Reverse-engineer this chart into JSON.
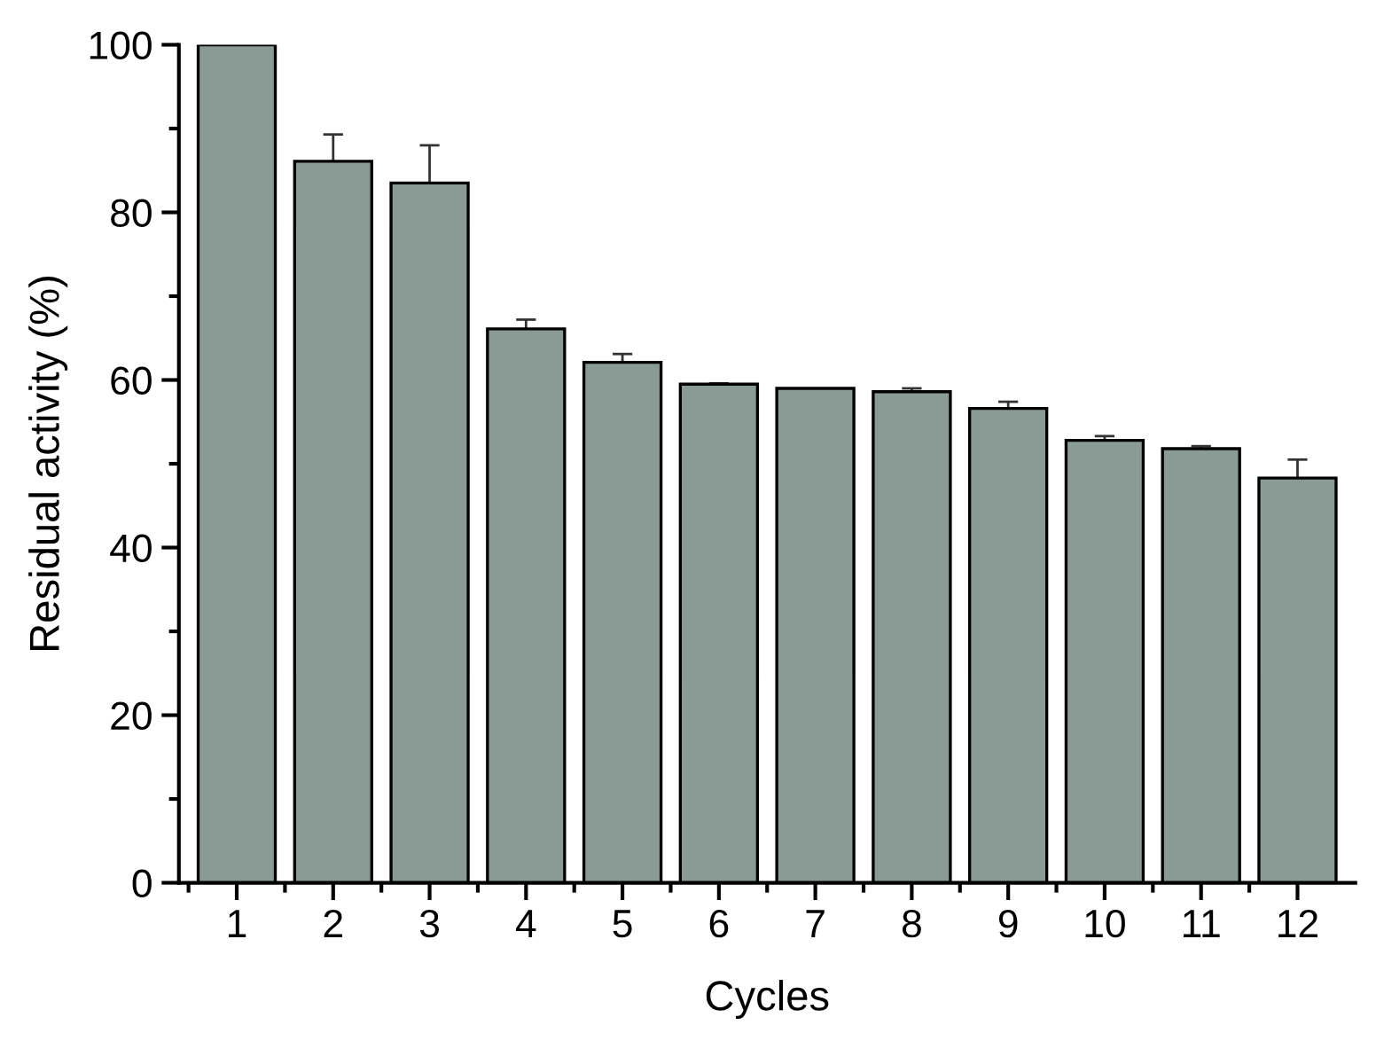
{
  "chart_data": {
    "type": "bar",
    "xlabel": "Cycles",
    "ylabel": "Residual activity (%)",
    "categories": [
      "1",
      "2",
      "3",
      "4",
      "5",
      "6",
      "7",
      "8",
      "9",
      "10",
      "11",
      "12"
    ],
    "values": [
      100,
      86.1,
      83.5,
      66.1,
      62.1,
      59.5,
      59.0,
      58.6,
      56.6,
      52.8,
      51.8,
      48.3
    ],
    "errors": [
      null,
      3.2,
      4.5,
      1.1,
      1.0,
      0.1,
      null,
      0.4,
      0.8,
      0.5,
      0.3,
      2.2
    ],
    "color": "#8a9b96",
    "ylim": [
      0,
      100
    ],
    "yticks": [
      0,
      20,
      40,
      60,
      80,
      100
    ],
    "grid": false,
    "legend": false
  }
}
